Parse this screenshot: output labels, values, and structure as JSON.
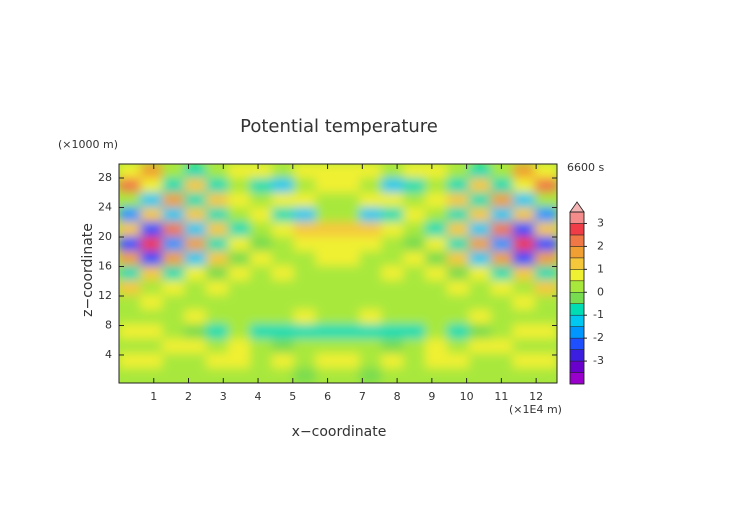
{
  "chart_data": {
    "type": "contour",
    "title": "Potential temperature",
    "subtitle": "6600 s",
    "x_label": "x−coordinate",
    "y_label": "z−coordinate",
    "x_unit": "(×1E4 m)",
    "y_unit": "(×1000 m)",
    "xlim": [
      0,
      12.6
    ],
    "ylim": [
      0.2,
      29.9
    ],
    "xticks": [
      1,
      2,
      3,
      4,
      5,
      6,
      7,
      8,
      9,
      10,
      11,
      12
    ],
    "yticks": [
      4,
      8,
      12,
      16,
      20,
      24,
      28
    ],
    "z": [
      [
        0.75,
        1.8,
        0.25,
        -0.7,
        0.25,
        0.75,
        0.75,
        0.25,
        0.75,
        0.75,
        0.75,
        0.75,
        0.25,
        0.75,
        0.75,
        0.25,
        -0.7,
        0.25,
        1.8,
        0.75
      ],
      [
        2.2,
        0.75,
        -0.7,
        1.2,
        -0.7,
        0.25,
        -0.7,
        -1.2,
        0.25,
        0.75,
        0.75,
        0.25,
        -1.2,
        -0.7,
        0.25,
        -0.7,
        1.2,
        -0.7,
        0.75,
        2.2
      ],
      [
        0.25,
        -1.2,
        1.8,
        -0.7,
        1.2,
        0.75,
        0.25,
        0.75,
        0.75,
        0.25,
        0.25,
        0.75,
        0.75,
        0.25,
        0.75,
        1.2,
        -0.7,
        1.8,
        -1.2,
        0.25
      ],
      [
        -1.8,
        1.2,
        -1.2,
        1.2,
        -0.7,
        0.25,
        0.75,
        -0.7,
        -1.2,
        0.25,
        0.25,
        -1.2,
        -0.7,
        0.75,
        0.25,
        -0.7,
        1.2,
        -1.2,
        1.2,
        -1.8
      ],
      [
        1.2,
        -2.2,
        2.2,
        -1.2,
        1.2,
        -0.7,
        0.25,
        0.75,
        1.2,
        1.2,
        1.2,
        1.2,
        0.75,
        0.25,
        -0.7,
        1.2,
        -1.2,
        2.2,
        -2.2,
        1.2
      ],
      [
        -2.2,
        2.7,
        -1.8,
        1.8,
        -0.7,
        0.75,
        -0.2,
        0.25,
        0.75,
        0.75,
        0.75,
        0.75,
        0.25,
        -0.2,
        0.75,
        -0.7,
        1.8,
        -1.8,
        2.7,
        -2.2
      ],
      [
        1.8,
        -2.2,
        1.8,
        -1.2,
        1.2,
        -0.2,
        0.75,
        0.25,
        0.25,
        0.75,
        0.75,
        0.25,
        0.25,
        0.75,
        -0.2,
        1.2,
        -1.2,
        1.8,
        -2.2,
        1.8
      ],
      [
        -0.7,
        1.2,
        -0.7,
        0.75,
        -0.2,
        0.75,
        0.25,
        0.75,
        0.25,
        0.25,
        0.25,
        0.25,
        0.75,
        0.25,
        0.75,
        -0.2,
        0.75,
        -0.7,
        1.2,
        -0.7
      ],
      [
        1.2,
        0.25,
        0.75,
        0.25,
        0.75,
        0.25,
        0.25,
        0.25,
        0.25,
        0.25,
        0.25,
        0.25,
        0.25,
        0.25,
        0.25,
        0.75,
        0.25,
        0.75,
        0.25,
        1.2
      ],
      [
        0.25,
        0.75,
        0.25,
        0.25,
        0.25,
        0.25,
        0.25,
        0.25,
        0.25,
        0.25,
        0.25,
        0.25,
        0.25,
        0.25,
        0.25,
        0.25,
        0.25,
        0.25,
        0.75,
        0.25
      ],
      [
        0.25,
        0.25,
        0.25,
        0.75,
        0.25,
        0.25,
        0.25,
        0.25,
        0.75,
        0.25,
        0.25,
        0.75,
        0.25,
        0.25,
        0.25,
        0.25,
        0.75,
        0.25,
        0.25,
        0.25
      ],
      [
        0.75,
        0.75,
        0.25,
        -0.2,
        -0.7,
        0.25,
        -0.7,
        -0.7,
        -0.7,
        -0.7,
        -0.7,
        -0.7,
        -0.7,
        -0.7,
        0.25,
        -0.7,
        -0.2,
        0.25,
        0.75,
        0.75
      ],
      [
        0.25,
        0.25,
        0.75,
        0.75,
        0.25,
        0.75,
        0.25,
        -0.2,
        0.25,
        0.25,
        0.25,
        0.25,
        -0.2,
        0.25,
        0.75,
        0.25,
        0.75,
        0.75,
        0.25,
        0.25
      ],
      [
        0.75,
        0.75,
        0.25,
        0.25,
        0.75,
        0.75,
        0.25,
        0.75,
        0.25,
        0.75,
        0.75,
        0.25,
        0.75,
        0.25,
        0.75,
        0.75,
        0.25,
        0.25,
        0.75,
        0.75
      ],
      [
        0.25,
        0.25,
        0.25,
        0.25,
        0.25,
        0.25,
        0.25,
        0.25,
        -0.2,
        0.25,
        0.25,
        -0.2,
        0.25,
        0.25,
        0.25,
        0.25,
        0.25,
        0.25,
        0.25,
        0.25
      ]
    ],
    "colorbar": {
      "levels": [
        -4,
        -3.5,
        -3,
        -2.5,
        -2,
        -1.5,
        -1,
        -0.5,
        0,
        0.5,
        1,
        1.5,
        2,
        2.5,
        3,
        3.5
      ],
      "colors": [
        "#9a00cc",
        "#6a00cc",
        "#3c1ee0",
        "#1e50ff",
        "#0096ff",
        "#00c8f0",
        "#00dcb4",
        "#78dc50",
        "#a8e83c",
        "#f0f032",
        "#f5c83c",
        "#f0a032",
        "#f07846",
        "#f03c46",
        "#f58c8c"
      ],
      "extend_color": "#f5b4b4",
      "ticks": [
        -3,
        -2,
        -1,
        0,
        1,
        2,
        3
      ]
    }
  }
}
